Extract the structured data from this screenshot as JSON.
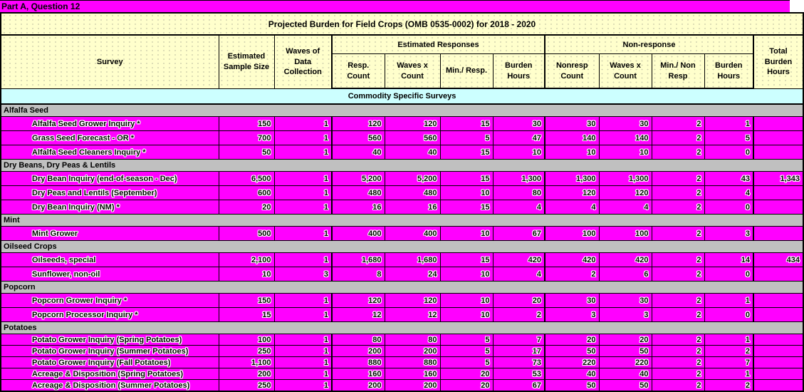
{
  "window": {
    "title": "Part A, Question 12"
  },
  "colors": {
    "cell_magenta": "#FF00FF",
    "header_yellow": "#FFFFCC",
    "band_cyan": "#CCFFFF",
    "section_gray": "#C0C0C0",
    "border_black": "#000000"
  },
  "table": {
    "title": "Projected Burden for Field Crops (OMB 0535-0002) for 2018 - 2020",
    "header": {
      "survey": "Survey",
      "sample_size": "Estimated\nSample Size",
      "waves": "Waves of\nData\nCollection",
      "group_estimated": "Estimated Responses",
      "group_nonresponse": "Non-response",
      "est_resp_count": "Resp.\nCount",
      "est_waves_x_count": "Waves x\nCount",
      "est_min_resp": "Min./ Resp.",
      "est_burden_hours": "Burden\nHours",
      "non_resp_count": "Nonresp\nCount",
      "non_waves_x_count": "Waves x\nCount",
      "non_min_resp": "Min./ Non\nResp",
      "non_burden_hours": "Burden\nHours",
      "total": "Total\nBurden\nHours"
    },
    "band": "Commodity Specific Surveys",
    "sections": [
      {
        "name": "Alfalfa Seed",
        "rows": [
          {
            "survey": "Alfalfa Seed Grower Inquiry *",
            "values": [
              "150",
              "1",
              "120",
              "120",
              "15",
              "30",
              "30",
              "30",
              "2",
              "1",
              ""
            ]
          },
          {
            "survey": "Grass Seed Forecast - OR *",
            "values": [
              "700",
              "1",
              "560",
              "560",
              "5",
              "47",
              "140",
              "140",
              "2",
              "5",
              ""
            ]
          },
          {
            "survey": "Alfalfa Seed Cleaners Inquiry *",
            "values": [
              "50",
              "1",
              "40",
              "40",
              "15",
              "10",
              "10",
              "10",
              "2",
              "0",
              ""
            ]
          }
        ]
      },
      {
        "name": "Dry Beans, Dry Peas & Lentils",
        "rows": [
          {
            "survey": "Dry Bean Inquiry (end-of-season - Dec)",
            "values": [
              "6,500",
              "1",
              "5,200",
              "5,200",
              "15",
              "1,300",
              "1,300",
              "1,300",
              "2",
              "43",
              "1,343"
            ]
          },
          {
            "survey": "Dry Peas and Lentils (September)",
            "values": [
              "600",
              "1",
              "480",
              "480",
              "10",
              "80",
              "120",
              "120",
              "2",
              "4",
              ""
            ]
          },
          {
            "survey": "Dry Bean Inquiry (NM) *",
            "values": [
              "20",
              "1",
              "16",
              "16",
              "15",
              "4",
              "4",
              "4",
              "2",
              "0",
              ""
            ]
          }
        ]
      },
      {
        "name": "Mint",
        "rows": [
          {
            "survey": "Mint Grower",
            "values": [
              "500",
              "1",
              "400",
              "400",
              "10",
              "67",
              "100",
              "100",
              "2",
              "3",
              ""
            ]
          }
        ]
      },
      {
        "name": "Oilseed Crops",
        "rows": [
          {
            "survey": "Oilseeds, special",
            "values": [
              "2,100",
              "1",
              "1,680",
              "1,680",
              "15",
              "420",
              "420",
              "420",
              "2",
              "14",
              "434"
            ]
          },
          {
            "survey": "Sunflower, non-oil",
            "values": [
              "10",
              "3",
              "8",
              "24",
              "10",
              "4",
              "2",
              "6",
              "2",
              "0",
              ""
            ]
          }
        ]
      },
      {
        "name": "Popcorn",
        "rows": [
          {
            "survey": "Popcorn Grower Inquiry *",
            "values": [
              "150",
              "1",
              "120",
              "120",
              "10",
              "20",
              "30",
              "30",
              "2",
              "1",
              ""
            ]
          },
          {
            "survey": "Popcorn Processor Inquiry *",
            "values": [
              "15",
              "1",
              "12",
              "12",
              "10",
              "2",
              "3",
              "3",
              "2",
              "0",
              ""
            ]
          }
        ]
      },
      {
        "name": "Potatoes",
        "rows": [
          {
            "survey": "Potato Grower Inquiry (Spring Potatoes)",
            "values": [
              "100",
              "1",
              "80",
              "80",
              "5",
              "7",
              "20",
              "20",
              "2",
              "1",
              ""
            ]
          },
          {
            "survey": "Potato Grower Inquiry (Summer Potatoes)",
            "values": [
              "250",
              "1",
              "200",
              "200",
              "5",
              "17",
              "50",
              "50",
              "2",
              "2",
              ""
            ]
          },
          {
            "survey": "Potato Grower Inquiry (Fall Potatoes)",
            "values": [
              "1,100",
              "1",
              "880",
              "880",
              "5",
              "73",
              "220",
              "220",
              "2",
              "7",
              ""
            ]
          },
          {
            "survey": "Acreage & Disposition (Spring Potatoes)",
            "values": [
              "200",
              "1",
              "160",
              "160",
              "20",
              "53",
              "40",
              "40",
              "2",
              "1",
              ""
            ]
          },
          {
            "survey": "Acreage & Disposition (Summer Potatoes)",
            "values": [
              "250",
              "1",
              "200",
              "200",
              "20",
              "67",
              "50",
              "50",
              "2",
              "2",
              ""
            ]
          }
        ]
      }
    ]
  }
}
